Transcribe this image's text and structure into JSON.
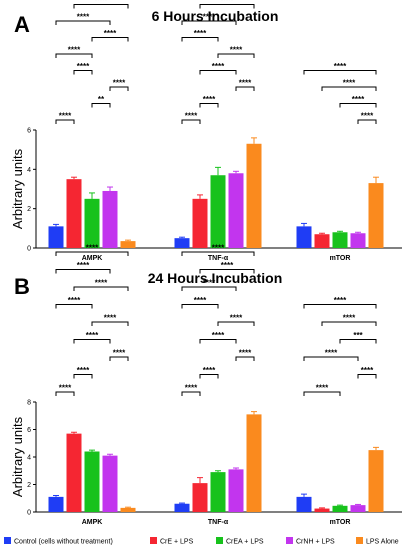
{
  "chart_data": [
    {
      "type": "bar",
      "panel_label": "A",
      "title": "6 Hours Incubation",
      "ylabel": "Arbitrary units",
      "xlabel": "",
      "ylim": [
        0,
        6
      ],
      "yticks": [
        0,
        2,
        4,
        6
      ],
      "categories": [
        "AMPK",
        "TNF-α",
        "mTOR"
      ],
      "series": [
        {
          "name": "Control (cells without treatment)",
          "values": [
            1.1,
            0.5,
            1.1
          ],
          "errors": [
            0.1,
            0.05,
            0.15
          ]
        },
        {
          "name": "CrE + LPS",
          "values": [
            3.5,
            2.5,
            0.7
          ],
          "errors": [
            0.1,
            0.2,
            0.05
          ]
        },
        {
          "name": "CrEA + LPS",
          "values": [
            2.5,
            3.7,
            0.8
          ],
          "errors": [
            0.3,
            0.4,
            0.05
          ]
        },
        {
          "name": "CrNH + LPS",
          "values": [
            2.9,
            3.8,
            0.75
          ],
          "errors": [
            0.2,
            0.1,
            0.05
          ]
        },
        {
          "name": "LPS Alone",
          "values": [
            0.35,
            5.3,
            3.3
          ],
          "errors": [
            0.05,
            0.3,
            0.3
          ]
        }
      ],
      "significance": [
        {
          "cat": 0,
          "from": 0,
          "to": 1,
          "label": "****"
        },
        {
          "cat": 0,
          "from": 2,
          "to": 3,
          "label": "**"
        },
        {
          "cat": 0,
          "from": 3,
          "to": 4,
          "label": "****"
        },
        {
          "cat": 0,
          "from": 1,
          "to": 2,
          "label": "****"
        },
        {
          "cat": 0,
          "from": 0,
          "to": 2,
          "label": "****"
        },
        {
          "cat": 0,
          "from": 2,
          "to": 4,
          "label": "****"
        },
        {
          "cat": 0,
          "from": 0,
          "to": 3,
          "label": "****"
        },
        {
          "cat": 0,
          "from": 1,
          "to": 4,
          "label": "****"
        },
        {
          "cat": 0,
          "from": 0,
          "to": 4,
          "label": "***"
        },
        {
          "cat": 1,
          "from": 0,
          "to": 1,
          "label": "****"
        },
        {
          "cat": 1,
          "from": 1,
          "to": 2,
          "label": "****"
        },
        {
          "cat": 1,
          "from": 3,
          "to": 4,
          "label": "****"
        },
        {
          "cat": 1,
          "from": 1,
          "to": 3,
          "label": "****"
        },
        {
          "cat": 1,
          "from": 2,
          "to": 4,
          "label": "****"
        },
        {
          "cat": 1,
          "from": 0,
          "to": 2,
          "label": "****"
        },
        {
          "cat": 1,
          "from": 0,
          "to": 3,
          "label": "****"
        },
        {
          "cat": 1,
          "from": 1,
          "to": 4,
          "label": "****"
        },
        {
          "cat": 1,
          "from": 0,
          "to": 4,
          "label": "****"
        },
        {
          "cat": 2,
          "from": 3,
          "to": 4,
          "label": "****"
        },
        {
          "cat": 2,
          "from": 2,
          "to": 4,
          "label": "****"
        },
        {
          "cat": 2,
          "from": 1,
          "to": 4,
          "label": "****"
        },
        {
          "cat": 2,
          "from": 0,
          "to": 4,
          "label": "****"
        }
      ]
    },
    {
      "type": "bar",
      "panel_label": "B",
      "title": "24 Hours Incubation",
      "ylabel": "Arbitrary units",
      "xlabel": "",
      "ylim": [
        0,
        8
      ],
      "yticks": [
        0,
        2,
        4,
        6,
        8
      ],
      "categories": [
        "AMPK",
        "TNF-α",
        "mTOR"
      ],
      "series": [
        {
          "name": "Control (cells without treatment)",
          "values": [
            1.1,
            0.6,
            1.1
          ],
          "errors": [
            0.1,
            0.05,
            0.2
          ]
        },
        {
          "name": "CrE + LPS",
          "values": [
            5.7,
            2.1,
            0.25
          ],
          "errors": [
            0.1,
            0.4,
            0.05
          ]
        },
        {
          "name": "CrEA + LPS",
          "values": [
            4.4,
            2.9,
            0.45
          ],
          "errors": [
            0.1,
            0.1,
            0.05
          ]
        },
        {
          "name": "CrNH + LPS",
          "values": [
            4.1,
            3.1,
            0.5
          ],
          "errors": [
            0.1,
            0.1,
            0.05
          ]
        },
        {
          "name": "LPS Alone",
          "values": [
            0.3,
            7.1,
            4.5
          ],
          "errors": [
            0.05,
            0.2,
            0.2
          ]
        }
      ],
      "significance": [
        {
          "cat": 0,
          "from": 0,
          "to": 1,
          "label": "****"
        },
        {
          "cat": 0,
          "from": 1,
          "to": 2,
          "label": "****"
        },
        {
          "cat": 0,
          "from": 3,
          "to": 4,
          "label": "****"
        },
        {
          "cat": 0,
          "from": 1,
          "to": 3,
          "label": "****"
        },
        {
          "cat": 0,
          "from": 2,
          "to": 4,
          "label": "****"
        },
        {
          "cat": 0,
          "from": 0,
          "to": 2,
          "label": "****"
        },
        {
          "cat": 0,
          "from": 1,
          "to": 4,
          "label": "****"
        },
        {
          "cat": 0,
          "from": 0,
          "to": 3,
          "label": "****"
        },
        {
          "cat": 0,
          "from": 0,
          "to": 4,
          "label": "****"
        },
        {
          "cat": 1,
          "from": 0,
          "to": 1,
          "label": "****"
        },
        {
          "cat": 1,
          "from": 1,
          "to": 2,
          "label": "****"
        },
        {
          "cat": 1,
          "from": 3,
          "to": 4,
          "label": "****"
        },
        {
          "cat": 1,
          "from": 1,
          "to": 3,
          "label": "****"
        },
        {
          "cat": 1,
          "from": 2,
          "to": 4,
          "label": "****"
        },
        {
          "cat": 1,
          "from": 0,
          "to": 2,
          "label": "****"
        },
        {
          "cat": 1,
          "from": 0,
          "to": 3,
          "label": "****"
        },
        {
          "cat": 1,
          "from": 1,
          "to": 4,
          "label": "****"
        },
        {
          "cat": 1,
          "from": 0,
          "to": 4,
          "label": "****"
        },
        {
          "cat": 2,
          "from": 0,
          "to": 2,
          "label": "****"
        },
        {
          "cat": 2,
          "from": 3,
          "to": 4,
          "label": "****"
        },
        {
          "cat": 2,
          "from": 0,
          "to": 3,
          "label": "****"
        },
        {
          "cat": 2,
          "from": 2,
          "to": 4,
          "label": "***"
        },
        {
          "cat": 2,
          "from": 1,
          "to": 4,
          "label": "****"
        },
        {
          "cat": 2,
          "from": 0,
          "to": 4,
          "label": "****"
        }
      ]
    }
  ],
  "legend": {
    "placement": "bottom",
    "items": [
      {
        "label": "Control (cells without treatment)",
        "color": "#1f3df5"
      },
      {
        "label": "CrE + LPS",
        "color": "#f52632"
      },
      {
        "label": "CrEA + LPS",
        "color": "#17c21c"
      },
      {
        "label": "CrNH + LPS",
        "color": "#c235ee"
      },
      {
        "label": "LPS Alone",
        "color": "#fa8a1e"
      }
    ]
  },
  "colors": {
    "control": "#1f3df5",
    "cre": "#f52632",
    "crea": "#17c21c",
    "crnh": "#c235ee",
    "lps": "#fa8a1e"
  }
}
